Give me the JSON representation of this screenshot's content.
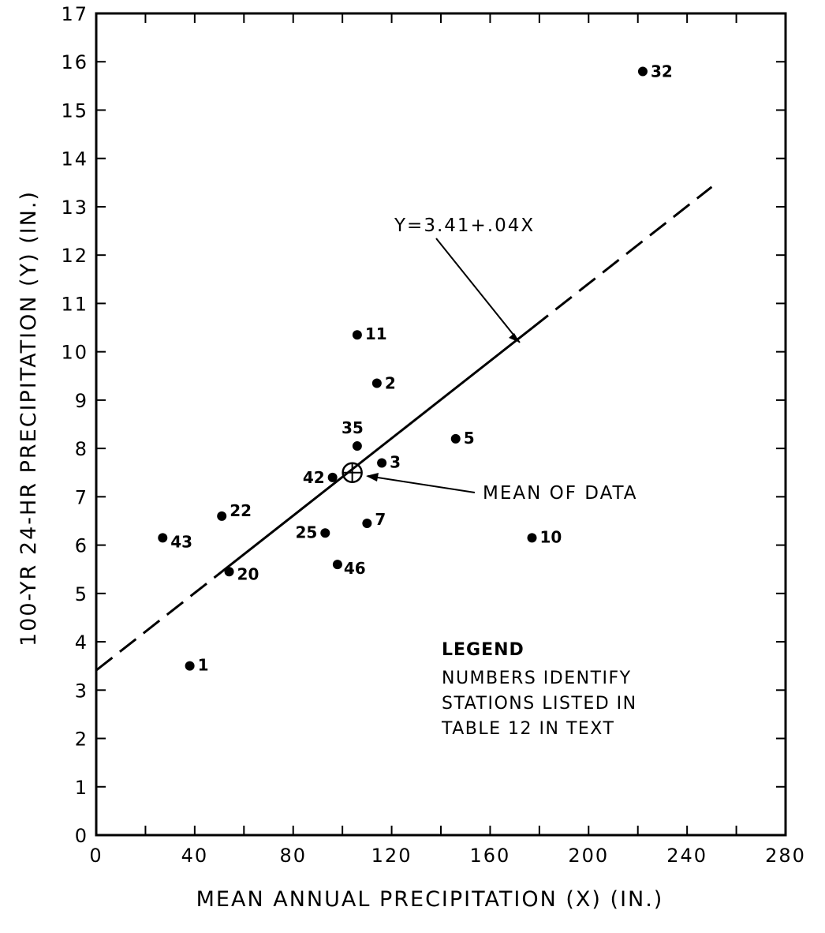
{
  "chart_data": {
    "type": "scatter",
    "xlabel": "MEAN ANNUAL PRECIPITATION (X) (IN.)",
    "ylabel": "100-YR 24-HR PRECIPITATION (Y) (IN.)",
    "xlim": [
      0,
      280
    ],
    "ylim": [
      0,
      17
    ],
    "x_ticks": [
      "0",
      "40",
      "80",
      "120",
      "160",
      "200",
      "240",
      "280"
    ],
    "y_ticks": [
      "0",
      "1",
      "2",
      "3",
      "4",
      "5",
      "6",
      "7",
      "8",
      "9",
      "10",
      "11",
      "12",
      "13",
      "14",
      "15",
      "16",
      "17"
    ],
    "points": [
      {
        "label": "1",
        "x": 38,
        "y": 3.5
      },
      {
        "label": "2",
        "x": 114,
        "y": 9.35
      },
      {
        "label": "3",
        "x": 116,
        "y": 7.7
      },
      {
        "label": "5",
        "x": 146,
        "y": 8.2
      },
      {
        "label": "7",
        "x": 110,
        "y": 6.45
      },
      {
        "label": "10",
        "x": 177,
        "y": 6.15
      },
      {
        "label": "11",
        "x": 106,
        "y": 10.35
      },
      {
        "label": "20",
        "x": 54,
        "y": 5.45
      },
      {
        "label": "22",
        "x": 51,
        "y": 6.6
      },
      {
        "label": "25",
        "x": 93,
        "y": 6.25
      },
      {
        "label": "32",
        "x": 222,
        "y": 15.8
      },
      {
        "label": "35",
        "x": 106,
        "y": 8.05
      },
      {
        "label": "42",
        "x": 96,
        "y": 7.4
      },
      {
        "label": "43",
        "x": 27,
        "y": 6.15
      },
      {
        "label": "46",
        "x": 98,
        "y": 5.6
      }
    ],
    "regression": {
      "equation": "Y=3.41+.04X",
      "intercept": 3.41,
      "slope": 0.04,
      "solid_range": [
        54,
        177
      ],
      "dashed_ranges": [
        [
          0,
          54
        ],
        [
          177,
          250
        ]
      ]
    },
    "mean_of_data": {
      "x": 104,
      "y": 7.5,
      "label": "MEAN OF DATA"
    },
    "legend": {
      "title": "LEGEND",
      "lines": [
        "NUMBERS IDENTIFY",
        "STATIONS LISTED IN",
        "TABLE 12 IN TEXT"
      ]
    },
    "grid": false
  }
}
